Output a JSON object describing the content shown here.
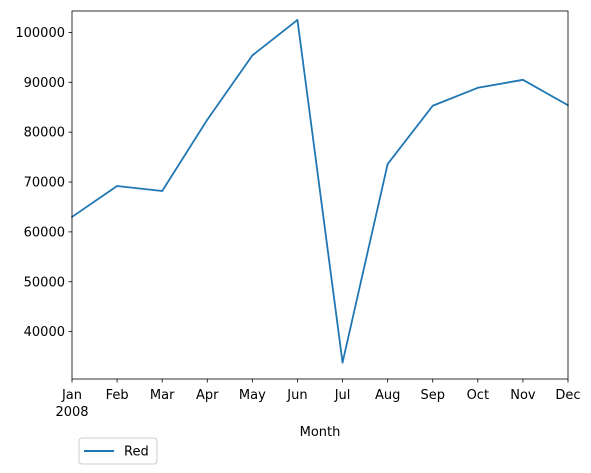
{
  "chart_data": {
    "type": "line",
    "title": "",
    "xlabel": "Month",
    "ylabel": "",
    "x_year_label": "2008",
    "categories": [
      "Jan",
      "Feb",
      "Mar",
      "Apr",
      "May",
      "Jun",
      "Jul",
      "Aug",
      "Sep",
      "Oct",
      "Nov",
      "Dec"
    ],
    "series": [
      {
        "name": "Red",
        "color": "#1f77b4",
        "values": [
          63000,
          69200,
          68200,
          82500,
          95400,
          102500,
          33800,
          73600,
          85300,
          88900,
          90500,
          85400
        ]
      }
    ],
    "ylim": [
      30500,
      104300
    ],
    "yticks": [
      40000,
      50000,
      60000,
      70000,
      80000,
      90000,
      100000
    ],
    "ytick_labels": [
      "40000",
      "50000",
      "60000",
      "70000",
      "80000",
      "90000",
      "100000"
    ],
    "grid": false,
    "legend": {
      "position": "below-left",
      "entries": [
        "Red"
      ]
    }
  }
}
